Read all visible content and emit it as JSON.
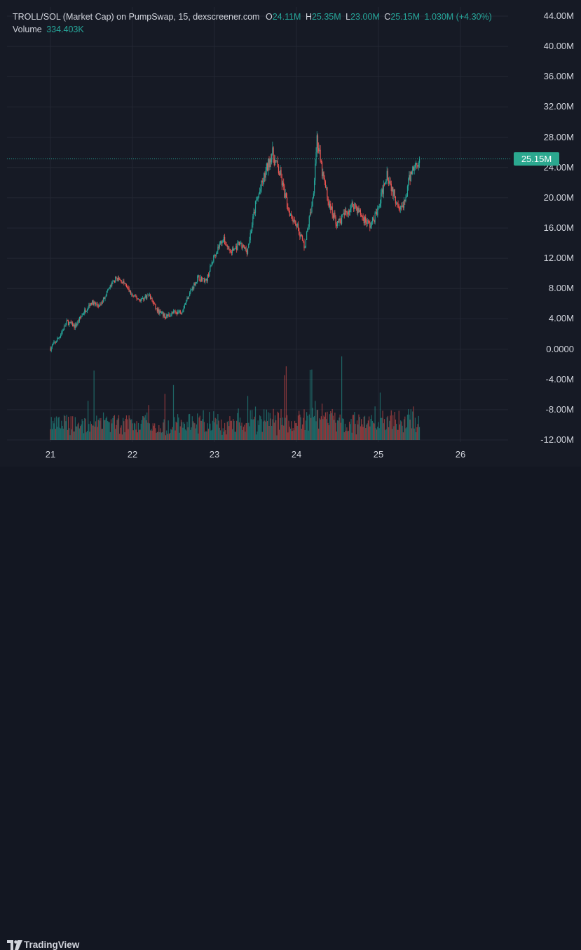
{
  "header": {
    "pair_title": "TROLL/SOL (Market Cap) on PumpSwap, 15, dexscreener.com",
    "open_label": "O",
    "open_value": "24.11M",
    "high_label": "H",
    "high_value": "25.35M",
    "low_label": "L",
    "low_value": "23.00M",
    "close_label": "C",
    "close_value": "25.15M",
    "change_value": "1.030M (+4.30%)",
    "volume_label": "Volume",
    "volume_value": "334.403K"
  },
  "price_tag": "25.15M",
  "footer": {
    "brand": "TradingView",
    "logo_icon": "tradingview-logo-icon"
  },
  "colors": {
    "up": "#26a69a",
    "down": "#ef5350",
    "background": "#161a25",
    "grid": "#232733",
    "price_tag": "#2ba88f"
  },
  "chart_data": {
    "type": "candlestick",
    "x_ticks": [
      "21",
      "22",
      "23",
      "24",
      "25",
      "26"
    ],
    "y_ticks": [
      "44.00M",
      "40.00M",
      "36.00M",
      "32.00M",
      "28.00M",
      "24.00M",
      "20.00M",
      "16.00M",
      "12.00M",
      "8.00M",
      "4.00M",
      "0.0000",
      "-4.00M",
      "-8.00M",
      "-12.00M"
    ],
    "y_range": [
      -12,
      44
    ],
    "y_unit": "M",
    "last_close": 25.15,
    "close_path": [
      [
        21.0,
        0.1
      ],
      [
        21.1,
        1.5
      ],
      [
        21.2,
        3.6
      ],
      [
        21.3,
        3.0
      ],
      [
        21.4,
        4.8
      ],
      [
        21.5,
        6.2
      ],
      [
        21.6,
        5.6
      ],
      [
        21.7,
        7.8
      ],
      [
        21.8,
        9.4
      ],
      [
        21.9,
        8.7
      ],
      [
        22.0,
        7.0
      ],
      [
        22.1,
        6.5
      ],
      [
        22.2,
        7.2
      ],
      [
        22.3,
        5.1
      ],
      [
        22.4,
        4.3
      ],
      [
        22.5,
        4.8
      ],
      [
        22.6,
        5.0
      ],
      [
        22.7,
        7.5
      ],
      [
        22.8,
        9.5
      ],
      [
        22.9,
        9.0
      ],
      [
        23.0,
        12.5
      ],
      [
        23.1,
        14.6
      ],
      [
        23.2,
        12.8
      ],
      [
        23.3,
        13.8
      ],
      [
        23.4,
        13.0
      ],
      [
        23.5,
        19.0
      ],
      [
        23.6,
        22.5
      ],
      [
        23.7,
        26.0
      ],
      [
        23.8,
        23.0
      ],
      [
        23.9,
        18.5
      ],
      [
        24.0,
        16.5
      ],
      [
        24.1,
        13.5
      ],
      [
        24.2,
        20.0
      ],
      [
        24.25,
        28.0
      ],
      [
        24.3,
        24.0
      ],
      [
        24.4,
        19.0
      ],
      [
        24.5,
        16.5
      ],
      [
        24.6,
        18.0
      ],
      [
        24.7,
        19.2
      ],
      [
        24.8,
        17.5
      ],
      [
        24.9,
        16.3
      ],
      [
        25.0,
        18.5
      ],
      [
        25.1,
        23.5
      ],
      [
        25.2,
        20.0
      ],
      [
        25.3,
        18.5
      ],
      [
        25.4,
        23.5
      ],
      [
        25.5,
        25.15
      ]
    ],
    "volume_max_k": 1200
  }
}
